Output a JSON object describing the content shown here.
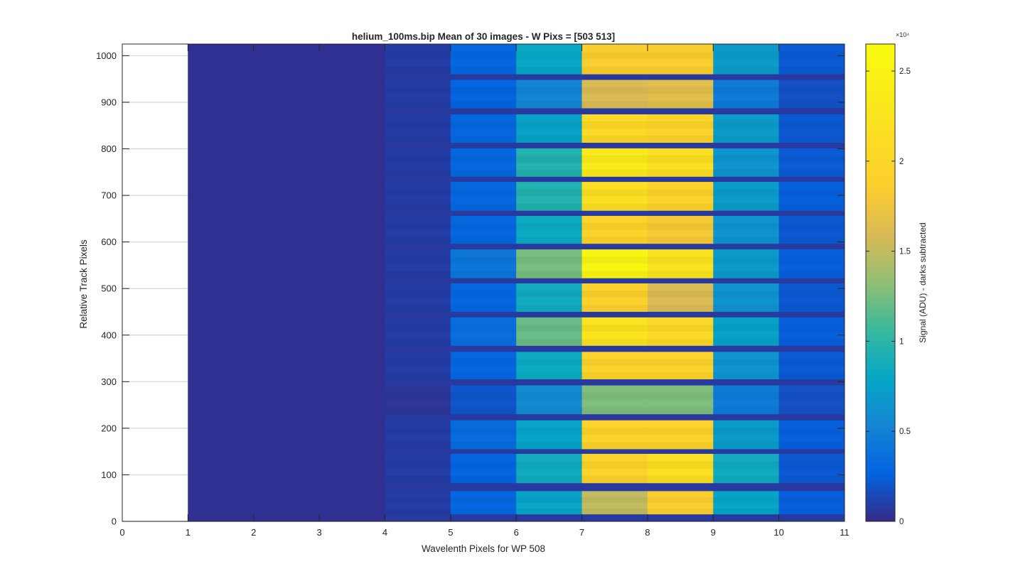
{
  "chart_data": {
    "type": "heatmap",
    "title": "helium_100ms.bip  Mean of 30 images - W Pixs = [503  513]",
    "xlabel": "Wavelenth Pixels for WP 508",
    "ylabel": "Relative Track Pixels",
    "xlim": [
      0,
      11
    ],
    "ylim": [
      0,
      1025
    ],
    "xticks": [
      "0",
      "1",
      "2",
      "3",
      "4",
      "5",
      "6",
      "7",
      "8",
      "9",
      "10",
      "11"
    ],
    "yticks": [
      "0",
      "100",
      "200",
      "300",
      "400",
      "500",
      "600",
      "700",
      "800",
      "900",
      "1000"
    ],
    "y_grid": true,
    "colormap": "parula",
    "colorbar": {
      "label": "Signal (ADU) - darks subtracted",
      "exponent_label": "×10⁴",
      "ticks": [
        "0",
        "0.5",
        "1",
        "1.5",
        "2",
        "2.5"
      ],
      "range": [
        0,
        26500
      ],
      "multiplier": 10000
    },
    "columns": [
      {
        "x0": 1,
        "x1": 4
      },
      {
        "x0": 4,
        "x1": 5
      },
      {
        "x0": 5,
        "x1": 6
      },
      {
        "x0": 6,
        "x1": 7
      },
      {
        "x0": 7,
        "x1": 8
      },
      {
        "x0": 8,
        "x1": 9
      },
      {
        "x0": 9,
        "x1": 10
      },
      {
        "x0": 10,
        "x1": 11
      }
    ],
    "background_value": 300,
    "gap_value": 700,
    "tracks": [
      {
        "y0": 15,
        "y1": 65,
        "values": [
          300,
          900,
          3000,
          7600,
          15000,
          18500,
          7700,
          2500
        ]
      },
      {
        "y0": 82,
        "y1": 145,
        "values": [
          300,
          900,
          2800,
          8500,
          19500,
          21500,
          8500,
          2200
        ]
      },
      {
        "y0": 155,
        "y1": 217,
        "values": [
          300,
          900,
          3300,
          7600,
          19500,
          19500,
          7000,
          2500
        ]
      },
      {
        "y0": 230,
        "y1": 292,
        "values": [
          300,
          500,
          2000,
          5700,
          12700,
          12700,
          4500,
          1800
        ]
      },
      {
        "y0": 305,
        "y1": 364,
        "values": [
          300,
          900,
          3000,
          8200,
          19500,
          19500,
          6500,
          2300
        ]
      },
      {
        "y0": 377,
        "y1": 438,
        "values": [
          300,
          900,
          3500,
          12000,
          22500,
          20500,
          7500,
          2500
        ]
      },
      {
        "y0": 450,
        "y1": 511,
        "values": [
          300,
          900,
          3000,
          8500,
          19000,
          16000,
          6500,
          2200
        ]
      },
      {
        "y0": 522,
        "y1": 584,
        "values": [
          300,
          900,
          4200,
          12500,
          25500,
          22000,
          7000,
          2500
        ]
      },
      {
        "y0": 596,
        "y1": 656,
        "values": [
          300,
          900,
          3000,
          8200,
          19500,
          18000,
          6500,
          2200
        ]
      },
      {
        "y0": 667,
        "y1": 729,
        "values": [
          300,
          900,
          3000,
          9500,
          21500,
          19500,
          7000,
          2500
        ]
      },
      {
        "y0": 740,
        "y1": 801,
        "values": [
          300,
          900,
          3000,
          9500,
          23500,
          21500,
          6500,
          2300
        ]
      },
      {
        "y0": 813,
        "y1": 874,
        "values": [
          300,
          900,
          3000,
          7500,
          20500,
          19500,
          7000,
          2200
        ]
      },
      {
        "y0": 887,
        "y1": 948,
        "values": [
          300,
          900,
          2800,
          5300,
          16000,
          16500,
          4500,
          1800
        ]
      },
      {
        "y0": 960,
        "y1": 1025,
        "values": [
          300,
          900,
          3000,
          8000,
          18500,
          18500,
          7000,
          2300
        ]
      }
    ]
  }
}
